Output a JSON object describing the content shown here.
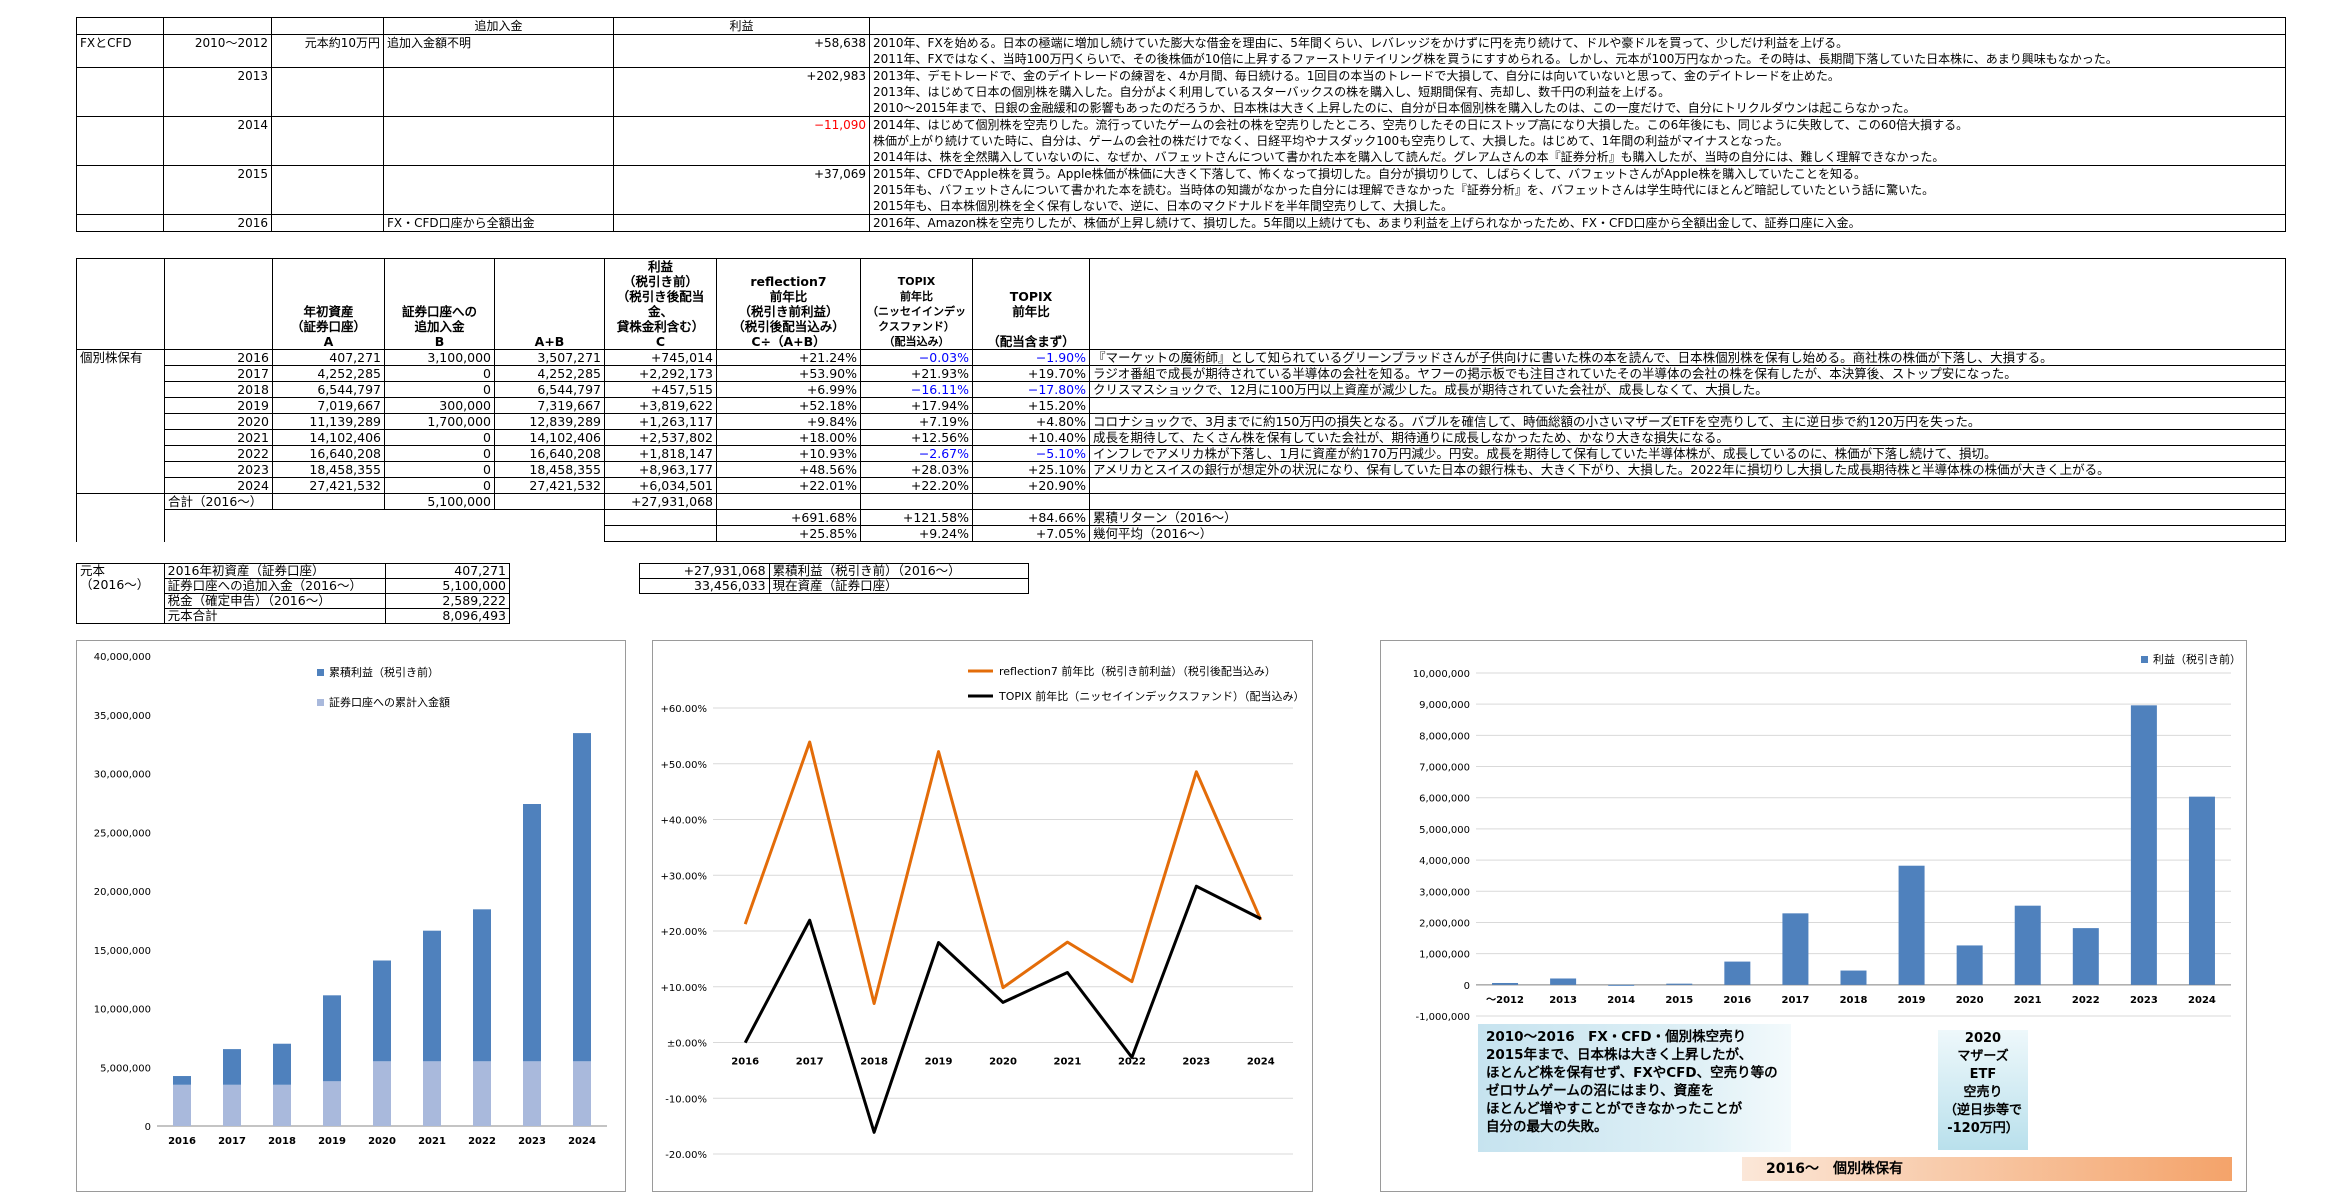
{
  "fx_table": {
    "header": {
      "extra": "追加入金",
      "profit": "利益"
    },
    "rows": [
      {
        "section": "FXとCFD",
        "year": "2010～2012",
        "principal": "元本約10万円",
        "extra": "追加入金額不明",
        "profit": "+58,638",
        "neg": false,
        "notes": [
          "2010年、FXを始める。日本の極端に増加し続けていた膨大な借金を理由に、5年間くらい、レバレッジをかけずに円を売り続けて、ドルや豪ドルを買って、少しだけ利益を上げる。",
          "2011年、FXではなく、当時100万円くらいで、その後株価が10倍に上昇するファーストリテイリング株を買うにすすめられる。しかし、元本が100万円なかった。その時は、長期間下落していた日本株に、あまり興味もなかった。"
        ]
      },
      {
        "section": "",
        "year": "2013",
        "principal": "",
        "extra": "",
        "profit": "+202,983",
        "neg": false,
        "notes": [
          "2013年、デモトレードで、金のデイトレードの練習を、4か月間、毎日続ける。1回目の本当のトレードで大損して、自分には向いていないと思って、金のデイトレードを止めた。",
          "2013年、はじめて日本の個別株を購入した。自分がよく利用しているスターバックスの株を購入し、短期間保有、売却し、数千円の利益を上げる。",
          "2010～2015年まで、日銀の金融緩和の影響もあったのだろうか、日本株は大きく上昇したのに、自分が日本個別株を購入したのは、この一度だけで、自分にトリクルダウンは起こらなかった。"
        ]
      },
      {
        "section": "",
        "year": "2014",
        "principal": "",
        "extra": "",
        "profit": "−11,090",
        "neg": true,
        "notes": [
          "2014年、はじめて個別株を空売りした。流行っていたゲームの会社の株を空売りしたところ、空売りしたその日にストップ高になり大損した。この6年後にも、同じように失敗して、この60倍大損する。",
          "株価が上がり続けていた時に、自分は、ゲームの会社の株だけでなく、日経平均やナスダック100も空売りして、大損した。はじめて、1年間の利益がマイナスとなった。",
          "2014年は、株を全然購入していないのに、なぜか、バフェットさんについて書かれた本を購入して読んだ。グレアムさんの本『証券分析』も購入したが、当時の自分には、難しく理解できなかった。"
        ]
      },
      {
        "section": "",
        "year": "2015",
        "principal": "",
        "extra": "",
        "profit": "+37,069",
        "neg": false,
        "notes": [
          "2015年、CFDでApple株を買う。Apple株価が株価に大きく下落して、怖くなって損切した。自分が損切りして、しばらくして、バフェットさんがApple株を購入していたことを知る。",
          "2015年も、バフェットさんについて書かれた本を読む。当時体の知識がなかった自分には理解できなかった『証券分析』を、バフェットさんは学生時代にほとんど暗記していたという話に驚いた。",
          "2015年も、日本株個別株を全く保有しないで、逆に、日本のマクドナルドを半年間空売りして、大損した。"
        ]
      },
      {
        "section": "",
        "year": "2016",
        "principal": "",
        "extra": "FX・CFD口座から全額出金",
        "profit": "",
        "neg": false,
        "notes": [
          "2016年、Amazon株を空売りしたが、株価が上昇し続けて、損切した。5年間以上続けても、あまり利益を上げられなかったため、FX・CFD口座から全額出金して、証券口座に入金。"
        ]
      }
    ]
  },
  "stock_table": {
    "headers": {
      "assets": "年初資産\n（証券口座）\nA",
      "deposit": "証券口座への\n追加入金\nB",
      "ab": "A+B",
      "profit": "利益\n（税引き前）\n（税引き後配当金、\n貸株金利含む）\nC",
      "r7": "reflection7\n前年比\n（税引き前利益）\n（税引後配当込み）\nC÷（A+B）",
      "topix_fund": "TOPIX\n前年比\n（ニッセイインデックスファンド）\n（配当込み）",
      "topix": "TOPIX\n前年比\n\n（配当含まず）"
    },
    "section_label": "個別株保有",
    "rows": [
      {
        "year": "2016",
        "a": "407,271",
        "b": "3,100,000",
        "ab": "3,507,271",
        "c": "+745,014",
        "r7": "+21.24%",
        "tf": "−0.03%",
        "tf_neg": true,
        "tp": "−1.90%",
        "tp_neg": true,
        "note": "『マーケットの魔術師』として知られているグリーンブラッドさんが子供向けに書いた株の本を読んで、日本株個別株を保有し始める。商社株の株価が下落し、大損する。"
      },
      {
        "year": "2017",
        "a": "4,252,285",
        "b": "0",
        "ab": "4,252,285",
        "c": "+2,292,173",
        "r7": "+53.90%",
        "tf": "+21.93%",
        "tf_neg": false,
        "tp": "+19.70%",
        "tp_neg": false,
        "note": "ラジオ番組で成長が期待されている半導体の会社を知る。ヤフーの掲示板でも注目されていたその半導体の会社の株を保有したが、本決算後、ストップ安になった。"
      },
      {
        "year": "2018",
        "a": "6,544,797",
        "b": "0",
        "ab": "6,544,797",
        "c": "+457,515",
        "r7": "+6.99%",
        "tf": "−16.11%",
        "tf_neg": true,
        "tp": "−17.80%",
        "tp_neg": true,
        "note": "クリスマスショックで、12月に100万円以上資産が減少した。成長が期待されていた会社が、成長しなくて、大損した。"
      },
      {
        "year": "2019",
        "a": "7,019,667",
        "b": "300,000",
        "ab": "7,319,667",
        "c": "+3,819,622",
        "r7": "+52.18%",
        "tf": "+17.94%",
        "tf_neg": false,
        "tp": "+15.20%",
        "tp_neg": false,
        "note": ""
      },
      {
        "year": "2020",
        "a": "11,139,289",
        "b": "1,700,000",
        "ab": "12,839,289",
        "c": "+1,263,117",
        "r7": "+9.84%",
        "tf": "+7.19%",
        "tf_neg": false,
        "tp": "+4.80%",
        "tp_neg": false,
        "note": "コロナショックで、3月までに約150万円の損失となる。バブルを確信して、時価総額の小さいマザーズETFを空売りして、主に逆日歩で約120万円を失った。"
      },
      {
        "year": "2021",
        "a": "14,102,406",
        "b": "0",
        "ab": "14,102,406",
        "c": "+2,537,802",
        "r7": "+18.00%",
        "tf": "+12.56%",
        "tf_neg": false,
        "tp": "+10.40%",
        "tp_neg": false,
        "note": "成長を期待して、たくさん株を保有していた会社が、期待通りに成長しなかったため、かなり大きな損失になる。"
      },
      {
        "year": "2022",
        "a": "16,640,208",
        "b": "0",
        "ab": "16,640,208",
        "c": "+1,818,147",
        "r7": "+10.93%",
        "tf": "−2.67%",
        "tf_neg": true,
        "tp": "−5.10%",
        "tp_neg": true,
        "note": "インフレでアメリカ株が下落し、1月に資産が約170万円減少。円安。成長を期待して保有していた半導体株が、成長しているのに、株価が下落し続けて、損切。"
      },
      {
        "year": "2023",
        "a": "18,458,355",
        "b": "0",
        "ab": "18,458,355",
        "c": "+8,963,177",
        "r7": "+48.56%",
        "tf": "+28.03%",
        "tf_neg": false,
        "tp": "+25.10%",
        "tp_neg": false,
        "note": "アメリカとスイスの銀行が想定外の状況になり、保有していた日本の銀行株も、大きく下がり、大損した。2022年に損切りし大損した成長期待株と半導体株の株価が大きく上がる。"
      },
      {
        "year": "2024",
        "a": "27,421,532",
        "b": "0",
        "ab": "27,421,532",
        "c": "+6,034,501",
        "r7": "+22.01%",
        "tf": "+22.20%",
        "tf_neg": false,
        "tp": "+20.90%",
        "tp_neg": false,
        "note": ""
      }
    ],
    "total": {
      "label": "合計（2016～）",
      "b": "5,100,000",
      "c": "+27,931,068"
    },
    "cumulative": {
      "r7": "+691.68%",
      "tf": "+121.58%",
      "tp": "+84.66%",
      "label": "累積リターン（2016～）"
    },
    "geometric": {
      "r7": "+25.85%",
      "tf": "+9.24%",
      "tp": "+7.05%",
      "label": "幾何平均（2016～）"
    }
  },
  "principal_table": {
    "label": "元本\n（2016～）",
    "rows": [
      {
        "k": "2016年初資産（証券口座）",
        "v": "407,271"
      },
      {
        "k": "証券口座への追加入金（2016～）",
        "v": "5,100,000"
      },
      {
        "k": "税金（確定申告）（2016～）",
        "v": "2,589,222"
      },
      {
        "k": "元本合計",
        "v": "8,096,493"
      }
    ]
  },
  "summary_table": {
    "rows": [
      {
        "v": "+27,931,068",
        "k": "累積利益（税引き前）（2016～）"
      },
      {
        "v": "33,456,033",
        "k": "現在資産（証券口座）"
      }
    ]
  },
  "chart_data": [
    {
      "type": "bar",
      "title": "",
      "stacked": true,
      "categories": [
        "2016",
        "2017",
        "2018",
        "2019",
        "2020",
        "2021",
        "2022",
        "2023",
        "2024"
      ],
      "ylim": [
        0,
        40000000
      ],
      "yticks": [
        "0",
        "5,000,000",
        "10,000,000",
        "15,000,000",
        "20,000,000",
        "25,000,000",
        "30,000,000",
        "35,000,000",
        "40,000,000"
      ],
      "legend_position": "top-right",
      "series": [
        {
          "name": "証券口座への累計入金額",
          "values": [
            3507271,
            3507271,
            3507271,
            3807271,
            5507271,
            5507271,
            5507271,
            5507271,
            5507271
          ],
          "color": "#a9b9dc"
        },
        {
          "name": "累積利益（税引き前）",
          "values": [
            745014,
            3037187,
            3494702,
            7314324,
            8577441,
            11115243,
            12933390,
            21896567,
            27931068
          ],
          "color": "#4f81bd"
        }
      ]
    },
    {
      "type": "line",
      "title": "",
      "categories": [
        "2016",
        "2017",
        "2018",
        "2019",
        "2020",
        "2021",
        "2022",
        "2023",
        "2024"
      ],
      "ylim": [
        -20,
        60
      ],
      "yticks": [
        "-20.00%",
        "-10.00%",
        "±0.00%",
        "+10.00%",
        "+20.00%",
        "+30.00%",
        "+40.00%",
        "+50.00%",
        "+60.00%"
      ],
      "legend_position": "top",
      "series": [
        {
          "name": "reflection7 前年比（税引き前利益）（税引後配当込み）",
          "values": [
            21.24,
            53.9,
            6.99,
            52.18,
            9.84,
            18.0,
            10.93,
            48.56,
            22.01
          ],
          "color": "#e36c09"
        },
        {
          "name": "TOPIX 前年比（ニッセイインデックスファンド）（配当込み）",
          "values": [
            -0.03,
            21.93,
            -16.11,
            17.94,
            7.19,
            12.56,
            -2.67,
            28.03,
            22.2
          ],
          "color": "#000000"
        }
      ]
    },
    {
      "type": "bar",
      "title": "",
      "categories": [
        "～2012",
        "2013",
        "2014",
        "2015",
        "2016",
        "2017",
        "2018",
        "2019",
        "2020",
        "2021",
        "2022",
        "2023",
        "2024"
      ],
      "ylim": [
        -1000000,
        10000000
      ],
      "yticks": [
        "-1,000,000",
        "0",
        "1,000,000",
        "2,000,000",
        "3,000,000",
        "4,000,000",
        "5,000,000",
        "6,000,000",
        "7,000,000",
        "8,000,000",
        "9,000,000",
        "10,000,000"
      ],
      "legend_position": "top-right",
      "series": [
        {
          "name": "利益（税引き前）",
          "values": [
            58638,
            202983,
            -11090,
            37069,
            745014,
            2292173,
            457515,
            3819622,
            1263117,
            2537802,
            1818147,
            8963177,
            6034501
          ],
          "color": "#4f81bd"
        }
      ]
    }
  ],
  "notes": {
    "lesson": "2010～2016　FX・CFD・個別株空売り\n2015年まで、日本株は大きく上昇したが、\nほとんど株を保有せず、FXやCFD、空売り等の\nゼロサムゲームの沼にはまり、資産を\nほとんど増やすことができなかったことが\n自分の最大の失敗。",
    "mothers": "2020\nマザーズ\nETF\n空売り\n（逆日歩等で\n-120万円）",
    "holding": "2016～　個別株保有"
  }
}
